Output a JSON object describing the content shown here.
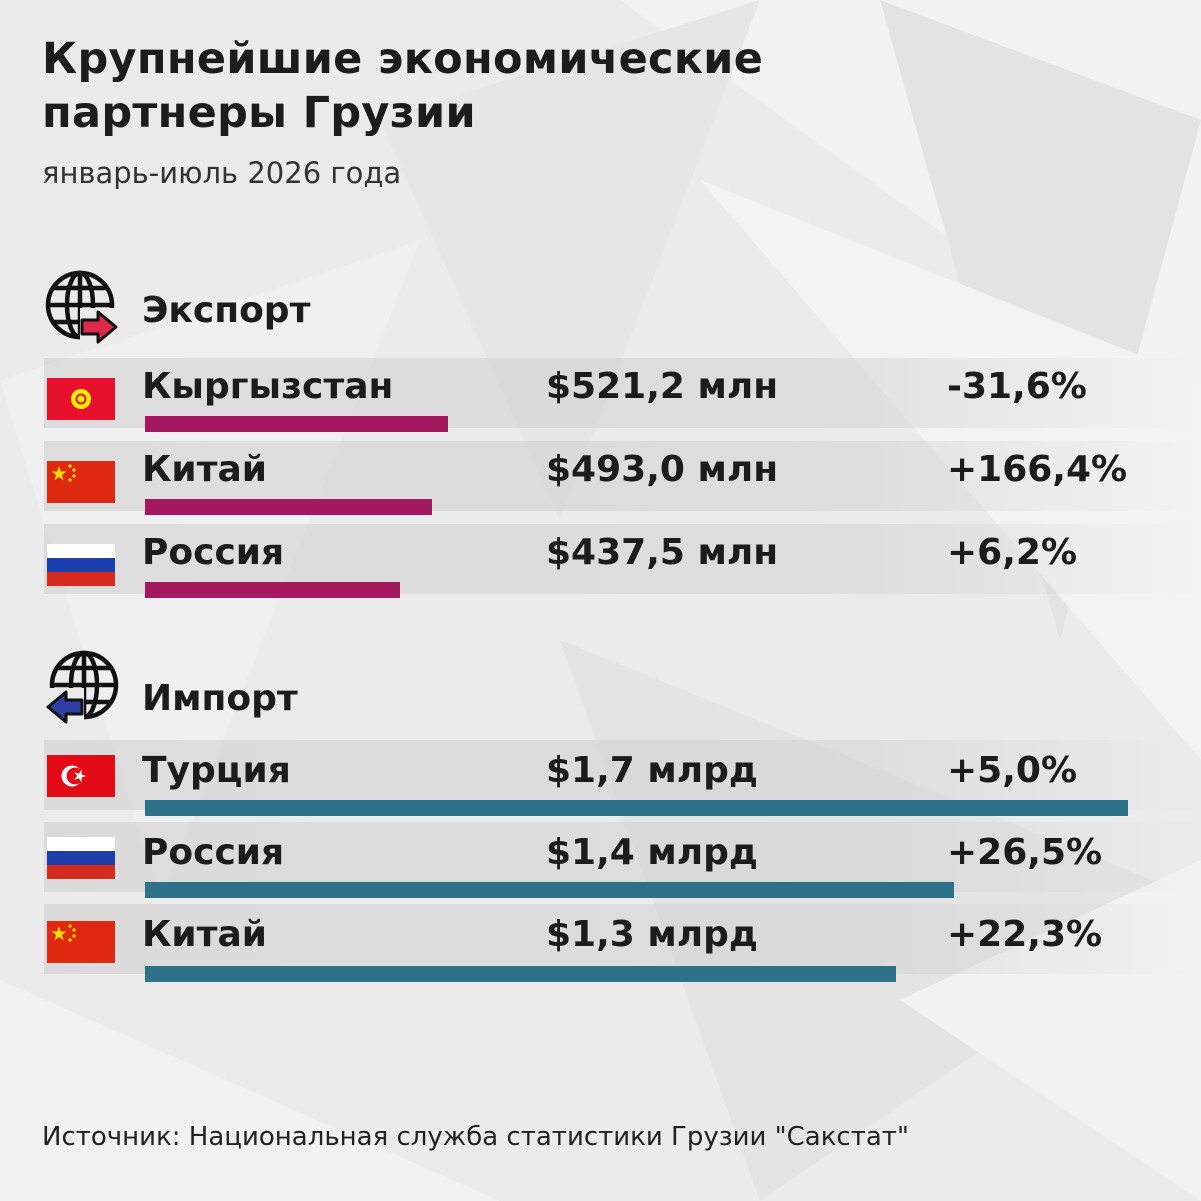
{
  "title_lines": [
    "Крупнейшие экономические",
    "партнеры Грузии"
  ],
  "subtitle": "январь-июль 2026 года",
  "source": "Источник: Национальная служба статистики Грузии \"Сакстат\"",
  "colors": {
    "export_bar": "#a3185f",
    "import_bar": "#2e7289",
    "export_arrow": "#e0284a",
    "import_arrow": "#2f3ea5"
  },
  "chart_data": [
    {
      "type": "bar",
      "title": "Экспорт",
      "icon": "globe-export-icon",
      "categories": [
        "Кыргызстан",
        "Китай",
        "Россия"
      ],
      "flags": [
        "kyrgyzstan-flag-icon",
        "china-flag-icon",
        "russia-flag-icon"
      ],
      "values": [
        521.2,
        493.0,
        437.5
      ],
      "value_labels": [
        "$521,2 млн",
        "$493,0 млн",
        "$437,5 млн"
      ],
      "change_labels": [
        "-31,6%",
        "+166,4%",
        "+6,2%"
      ],
      "unit": "млн USD"
    },
    {
      "type": "bar",
      "title": "Импорт",
      "icon": "globe-import-icon",
      "categories": [
        "Турция",
        "Россия",
        "Китай"
      ],
      "flags": [
        "turkey-flag-icon",
        "russia-flag-icon",
        "china-flag-icon"
      ],
      "values": [
        1700,
        1400,
        1300
      ],
      "value_labels": [
        "$1,7 млрд",
        "$1,4 млрд",
        "$1,3 млрд"
      ],
      "change_labels": [
        "+5,0%",
        "+26,5%",
        "+22,3%"
      ],
      "unit": "млн USD"
    }
  ]
}
